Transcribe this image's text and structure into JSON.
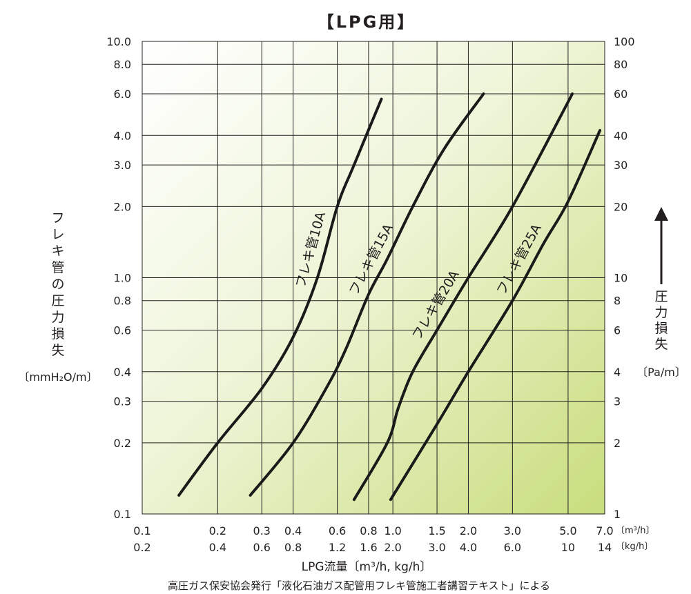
{
  "title": "【LPG用】",
  "footnote": "高圧ガス保安協会発行「液化石油ガス配管用フレキ管施工者講習テキスト」による",
  "chart_data": {
    "type": "line",
    "title": "【LPG用】",
    "xlabel": "LPG流量〔m³/h, kg/h〕",
    "ylabel_left": "フレキ管の圧力損失",
    "ylabel_left_unit": "〔mmH₂O/m〕",
    "ylabel_right": "圧力損失",
    "ylabel_right_unit": "〔Pa/m〕",
    "x_scale": "log",
    "y_scale": "log",
    "xlim": [
      0.1,
      7.0
    ],
    "ylim": [
      0.1,
      10.0
    ],
    "grid": true,
    "x_ticks": [
      {
        "value": 0.1,
        "label_m3h": "0.1",
        "label_kgh": "0.2"
      },
      {
        "value": 0.2,
        "label_m3h": "0.2",
        "label_kgh": "0.4"
      },
      {
        "value": 0.3,
        "label_m3h": "0.3",
        "label_kgh": "0.6"
      },
      {
        "value": 0.4,
        "label_m3h": "0.4",
        "label_kgh": "0.8"
      },
      {
        "value": 0.6,
        "label_m3h": "0.6",
        "label_kgh": "1.2"
      },
      {
        "value": 0.8,
        "label_m3h": "0.8",
        "label_kgh": "1.6"
      },
      {
        "value": 1.0,
        "label_m3h": "1.0",
        "label_kgh": "2.0"
      },
      {
        "value": 1.5,
        "label_m3h": "1.5",
        "label_kgh": "3.0"
      },
      {
        "value": 2.0,
        "label_m3h": "2.0",
        "label_kgh": "4.0"
      },
      {
        "value": 3.0,
        "label_m3h": "3.0",
        "label_kgh": "6.0"
      },
      {
        "value": 5.0,
        "label_m3h": "5.0",
        "label_kgh": "10"
      },
      {
        "value": 7.0,
        "label_m3h": "7.0",
        "label_kgh": "14"
      }
    ],
    "x_unit_m3h": "〔m³/h〕",
    "x_unit_kgh": "〔kg/h〕",
    "y_ticks": [
      {
        "value": 0.1,
        "left": "0.1",
        "right": "1"
      },
      {
        "value": 0.2,
        "left": "0.2",
        "right": "2"
      },
      {
        "value": 0.3,
        "left": "0.3",
        "right": "3"
      },
      {
        "value": 0.4,
        "left": "0.4",
        "right": "4"
      },
      {
        "value": 0.6,
        "left": "0.6",
        "right": "6"
      },
      {
        "value": 0.8,
        "left": "0.8",
        "right": "8"
      },
      {
        "value": 1.0,
        "left": "1.0",
        "right": "10"
      },
      {
        "value": 2.0,
        "left": "2.0",
        "right": "20"
      },
      {
        "value": 3.0,
        "left": "3.0",
        "right": "30"
      },
      {
        "value": 4.0,
        "left": "4.0",
        "right": "40"
      },
      {
        "value": 6.0,
        "left": "6.0",
        "right": "60"
      },
      {
        "value": 8.0,
        "left": "8.0",
        "right": "80"
      },
      {
        "value": 10.0,
        "left": "10.0",
        "right": "100"
      }
    ],
    "background_gradient": [
      "#ffffff",
      "#eef5d8",
      "#c8dd7c"
    ],
    "series": [
      {
        "name": "フレキ管10A",
        "points": [
          [
            0.14,
            0.12
          ],
          [
            0.2,
            0.2
          ],
          [
            0.3,
            0.34
          ],
          [
            0.4,
            0.56
          ],
          [
            0.5,
            1.0
          ],
          [
            0.6,
            2.0
          ],
          [
            0.7,
            3.0
          ],
          [
            0.9,
            5.7
          ]
        ]
      },
      {
        "name": "フレキ管15A",
        "points": [
          [
            0.27,
            0.12
          ],
          [
            0.4,
            0.2
          ],
          [
            0.55,
            0.35
          ],
          [
            0.65,
            0.5
          ],
          [
            0.8,
            0.85
          ],
          [
            0.95,
            1.2
          ],
          [
            1.2,
            2.0
          ],
          [
            1.6,
            3.5
          ],
          [
            2.3,
            6.0
          ]
        ]
      },
      {
        "name": "フレキ管20A",
        "points": [
          [
            0.7,
            0.115
          ],
          [
            0.95,
            0.2
          ],
          [
            1.05,
            0.28
          ],
          [
            1.2,
            0.4
          ],
          [
            1.5,
            0.6
          ],
          [
            2.0,
            1.0
          ],
          [
            3.0,
            2.0
          ],
          [
            5.2,
            6.0
          ]
        ]
      },
      {
        "name": "フレキ管25A",
        "points": [
          [
            0.98,
            0.115
          ],
          [
            1.5,
            0.24
          ],
          [
            2.0,
            0.4
          ],
          [
            3.0,
            0.8
          ],
          [
            4.0,
            1.4
          ],
          [
            5.0,
            2.1
          ],
          [
            6.7,
            4.2
          ]
        ]
      }
    ]
  }
}
